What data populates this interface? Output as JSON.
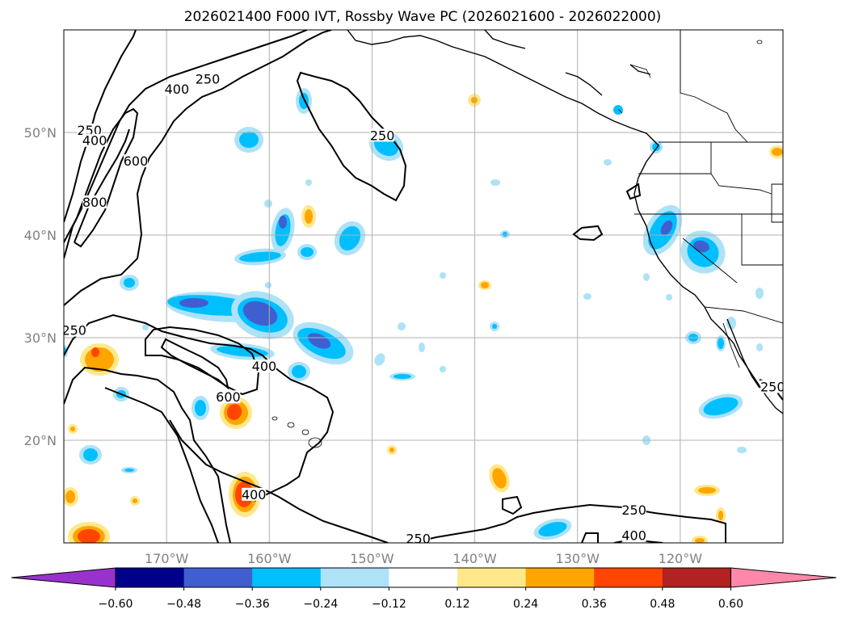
{
  "title": "2026021400 F000 IVT, Rossby Wave PC (2026021600 - 2026022000)",
  "map": {
    "lon_range": [
      -180,
      -110
    ],
    "lat_range": [
      10,
      60
    ],
    "lon_ticks": [
      {
        "value": -170,
        "label": "170°W"
      },
      {
        "value": -160,
        "label": "160°W"
      },
      {
        "value": -150,
        "label": "150°W"
      },
      {
        "value": -140,
        "label": "140°W"
      },
      {
        "value": -130,
        "label": "130°W"
      },
      {
        "value": -120,
        "label": "120°W"
      }
    ],
    "lat_ticks": [
      {
        "value": 20,
        "label": "20°N"
      },
      {
        "value": 30,
        "label": "30°N"
      },
      {
        "value": 40,
        "label": "40°N"
      },
      {
        "value": 50,
        "label": "50°N"
      }
    ],
    "gridlines": true,
    "contour_labels": [
      {
        "text": "250",
        "lon": -166,
        "lat": 55
      },
      {
        "text": "400",
        "lon": -169,
        "lat": 54
      },
      {
        "text": "250",
        "lon": -177.5,
        "lat": 50
      },
      {
        "text": "400",
        "lon": -177,
        "lat": 49
      },
      {
        "text": "600",
        "lon": -173,
        "lat": 47
      },
      {
        "text": "800",
        "lon": -177,
        "lat": 43
      },
      {
        "text": "250",
        "lon": -149,
        "lat": 49.5
      },
      {
        "text": "250",
        "lon": -179,
        "lat": 30.5
      },
      {
        "text": "600",
        "lon": -164,
        "lat": 24
      },
      {
        "text": "400",
        "lon": -160.5,
        "lat": 27
      },
      {
        "text": "400",
        "lon": -161.5,
        "lat": 14.5
      },
      {
        "text": "250",
        "lon": -145.5,
        "lat": 10.2
      },
      {
        "text": "250",
        "lon": -124.5,
        "lat": 13
      },
      {
        "text": "400",
        "lon": -124.5,
        "lat": 10.5
      },
      {
        "text": "250",
        "lon": -111,
        "lat": 25
      }
    ]
  },
  "colorbar": {
    "tick_labels": [
      "−0.60",
      "−0.48",
      "−0.36",
      "−0.24",
      "−0.12",
      "0.12",
      "0.24",
      "0.36",
      "0.48",
      "0.60"
    ],
    "colors": [
      "#9932cc",
      "#00008b",
      "#3f5fd0",
      "#00bfff",
      "#ade2f7",
      "#ffffff",
      "#ffe88a",
      "#ffa500",
      "#ff4500",
      "#b22222",
      "#ff88aa"
    ],
    "extend": "both"
  },
  "patch_colors": {
    "neg_light": "#ade2f7",
    "neg_mid": "#00bfff",
    "neg_strong": "#3f5fd0",
    "pos_light": "#ffe88a",
    "pos_mid": "#ffa500",
    "pos_strong": "#ff4500"
  }
}
